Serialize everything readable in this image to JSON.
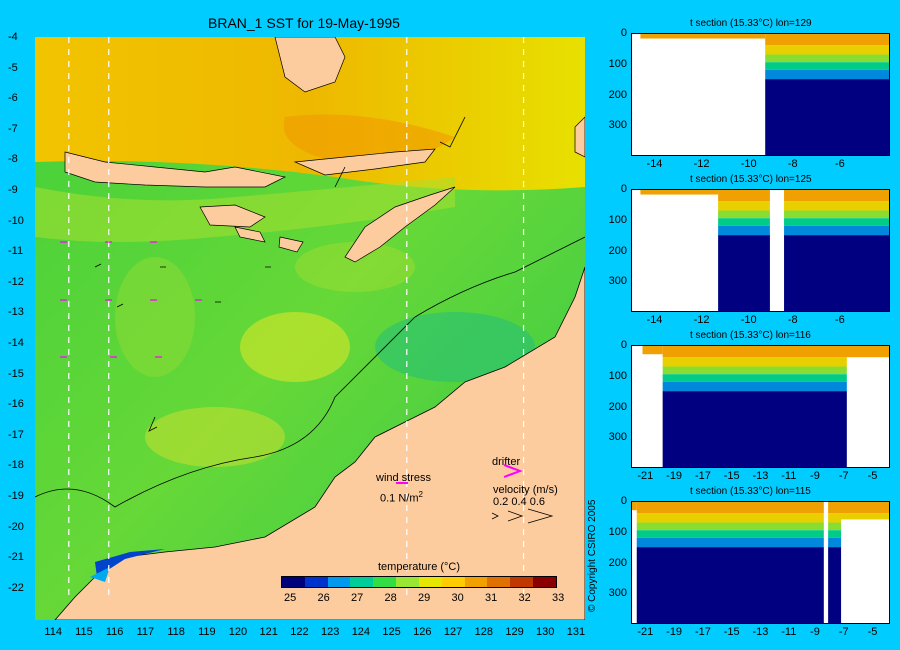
{
  "main_map": {
    "title": "BRAN_1 SST for 19-May-1995",
    "lon_ticks": [
      "114",
      "115",
      "116",
      "117",
      "118",
      "119",
      "120",
      "121",
      "122",
      "123",
      "124",
      "125",
      "126",
      "127",
      "128",
      "129",
      "130",
      "131"
    ],
    "lat_ticks": [
      "-4",
      "-5",
      "-6",
      "-7",
      "-8",
      "-9",
      "-10",
      "-11",
      "-12",
      "-13",
      "-14",
      "-15",
      "-16",
      "-17",
      "-18",
      "-19",
      "-20",
      "-21",
      "-22"
    ],
    "section_lines_lon": [
      114.5,
      115.8,
      125.5,
      129.3
    ],
    "wind_legend": {
      "title": "wind stress",
      "scale": "0.1 N/m",
      "sup": "2"
    },
    "drifter_legend": {
      "title": "drifter"
    },
    "velocity_legend": {
      "title": "velocity (m/s)",
      "values": "0.2 0.4 0.6"
    },
    "colorbar": {
      "title": "temperature (°C)",
      "ticks": [
        "25",
        "26",
        "27",
        "28",
        "29",
        "30",
        "31",
        "32",
        "33"
      ],
      "colors": [
        "#00007a",
        "#0033cc",
        "#0099ee",
        "#00cc99",
        "#33dd44",
        "#99e633",
        "#e6e600",
        "#ffcc00",
        "#f2a000",
        "#e07000",
        "#c03800",
        "#8a0000"
      ]
    },
    "colors": {
      "land": "#fdcc9e",
      "background": "#00ccff",
      "drifter": "#ff00ff"
    }
  },
  "copyright": "© Copyright CSIRO 2005",
  "chart_data": [
    {
      "type": "heatmap",
      "title": "t section (15.33°C) lon=129",
      "x_ticks": [
        "-14",
        "-12",
        "-10",
        "-8",
        "-6"
      ],
      "y_ticks": [
        "0",
        "100",
        "200",
        "300"
      ],
      "xlim": [
        -15,
        -4
      ],
      "ylim": [
        0,
        400
      ]
    },
    {
      "type": "heatmap",
      "title": "t section (15.33°C) lon=125",
      "x_ticks": [
        "-14",
        "-12",
        "-10",
        "-8",
        "-6"
      ],
      "y_ticks": [
        "0",
        "100",
        "200",
        "300"
      ],
      "xlim": [
        -15,
        -4
      ],
      "ylim": [
        0,
        400
      ]
    },
    {
      "type": "heatmap",
      "title": "t section (15.33°C) lon=116",
      "x_ticks": [
        "-21",
        "-19",
        "-17",
        "-15",
        "-13",
        "-11",
        "-9",
        "-7",
        "-5"
      ],
      "y_ticks": [
        "0",
        "100",
        "200",
        "300"
      ],
      "xlim": [
        -22,
        -4
      ],
      "ylim": [
        0,
        400
      ]
    },
    {
      "type": "heatmap",
      "title": "t section (15.33°C) lon=115",
      "x_ticks": [
        "-21",
        "-19",
        "-17",
        "-15",
        "-13",
        "-11",
        "-9",
        "-7",
        "-5"
      ],
      "y_ticks": [
        "0",
        "100",
        "200",
        "300"
      ],
      "xlim": [
        -22,
        -4
      ],
      "ylim": [
        0,
        400
      ]
    }
  ]
}
